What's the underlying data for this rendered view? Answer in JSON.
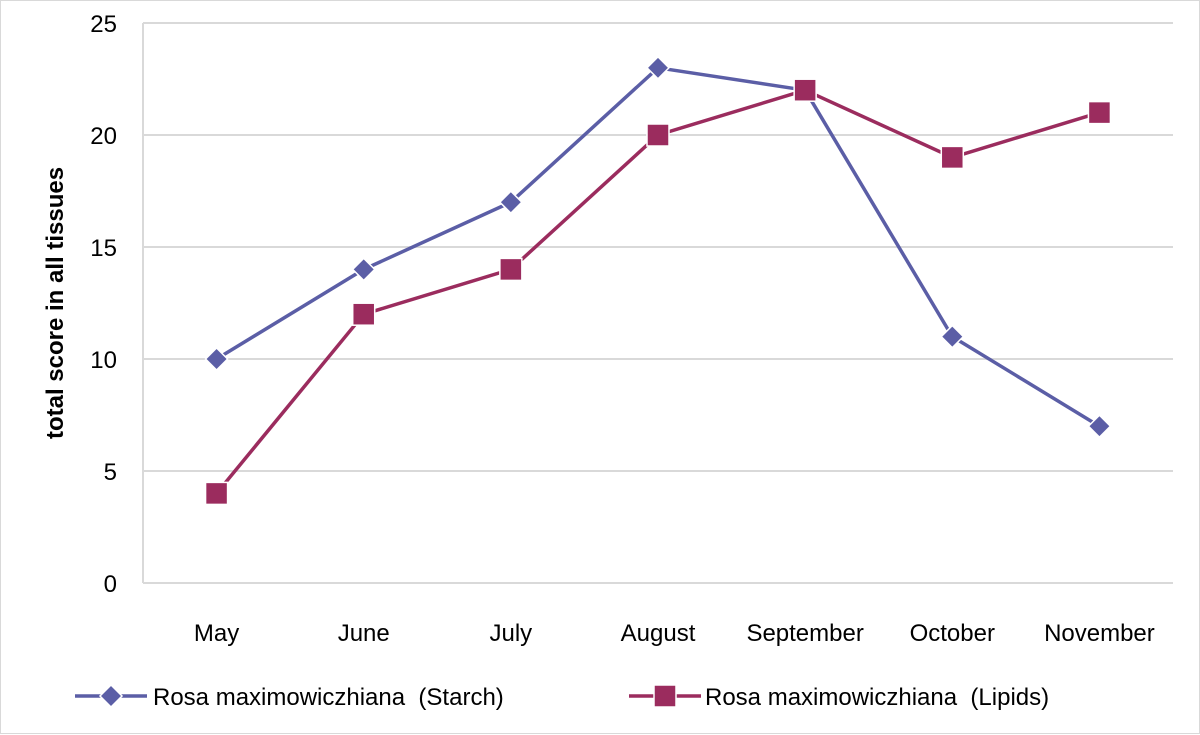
{
  "chart_data": {
    "type": "line",
    "title": "",
    "xlabel": "",
    "ylabel": "total score in all tissues",
    "categories": [
      "May",
      "June",
      "July",
      "August",
      "September",
      "October",
      "November"
    ],
    "ylim": [
      0,
      25
    ],
    "yticks": [
      0,
      5,
      10,
      15,
      20,
      25
    ],
    "grid": true,
    "legend_position": "bottom",
    "series": [
      {
        "name": "Rosa maximowiczhiana  (Starch)",
        "marker": "diamond",
        "color": "#5b5ea6",
        "values": [
          10,
          14,
          17,
          23,
          22,
          11,
          7
        ]
      },
      {
        "name": "Rosa maximowiczhiana  (Lipids)",
        "marker": "square",
        "color": "#9b2c5e",
        "values": [
          4,
          12,
          14,
          20,
          22,
          19,
          21
        ]
      }
    ]
  }
}
